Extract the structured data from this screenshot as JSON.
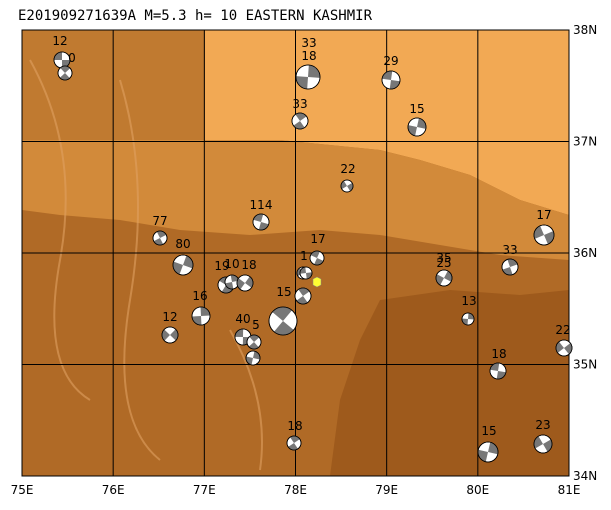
{
  "title": "E201909271639A  M=5.3  h= 10  EASTERN KASHMIR",
  "lon_labels": [
    "75E",
    "76E",
    "77E",
    "78E",
    "79E",
    "80E",
    "81E"
  ],
  "lat_labels": [
    "38N",
    "37N",
    "36N",
    "35N",
    "34N"
  ],
  "events": [
    {
      "label": "12"
    },
    {
      "label": "0"
    },
    {
      "label": "33"
    },
    {
      "label": "18"
    },
    {
      "label": "29"
    },
    {
      "label": "33"
    },
    {
      "label": "15"
    },
    {
      "label": "22"
    },
    {
      "label": "114"
    },
    {
      "label": "77"
    },
    {
      "label": "80"
    },
    {
      "label": "17"
    },
    {
      "label": "17"
    },
    {
      "label": "33"
    },
    {
      "label": "35"
    },
    {
      "label": "25"
    },
    {
      "label": "19"
    },
    {
      "label": "10"
    },
    {
      "label": "18"
    },
    {
      "label": "1"
    },
    {
      "label": "15"
    },
    {
      "label": "16"
    },
    {
      "label": "12"
    },
    {
      "label": "40"
    },
    {
      "label": "5"
    },
    {
      "label": "13"
    },
    {
      "label": "22"
    },
    {
      "label": "18"
    },
    {
      "label": "18"
    },
    {
      "label": "15"
    },
    {
      "label": "23"
    }
  ]
}
